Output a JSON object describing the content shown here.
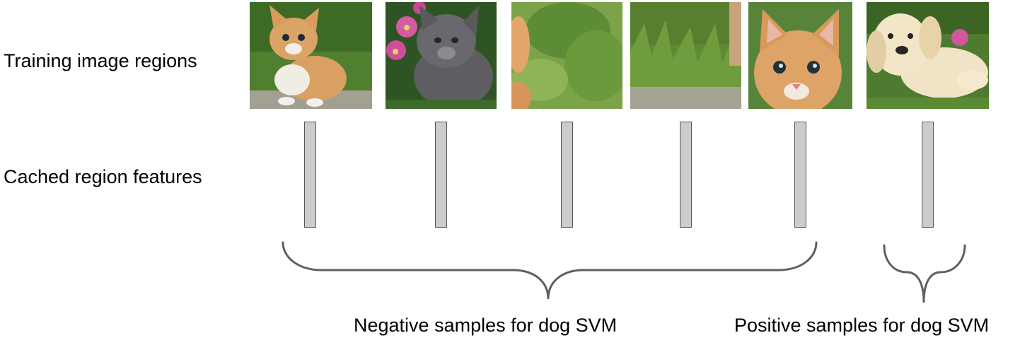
{
  "row_labels": {
    "regions": "Training image regions",
    "features": "Cached region features"
  },
  "captions": {
    "negative": "Negative samples for dog SVM",
    "positive": "Positive samples for dog SVM"
  },
  "regions": [
    {
      "subject": "kitten-sitting-on-rock",
      "group": "negative"
    },
    {
      "subject": "gray-kitten-with-pink-flowers",
      "group": "negative"
    },
    {
      "subject": "blurry-grass-background",
      "group": "negative"
    },
    {
      "subject": "grass-and-rock-background",
      "group": "negative"
    },
    {
      "subject": "kitten-face-closeup",
      "group": "negative"
    },
    {
      "subject": "golden-retriever-puppy",
      "group": "positive"
    }
  ],
  "colors": {
    "feature_fill": "#cccccc",
    "feature_border": "#555555",
    "brace": "#5f5f5f"
  }
}
